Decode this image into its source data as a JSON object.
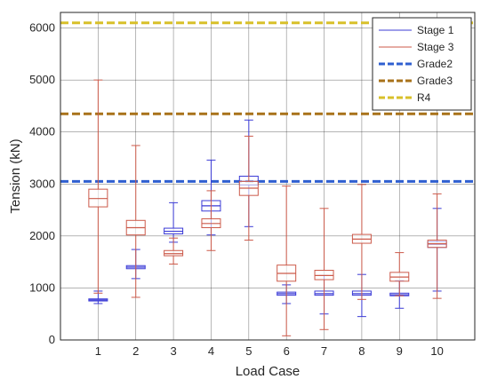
{
  "chart_data": {
    "type": "boxplot",
    "xlabel": "Load Case",
    "ylabel": "Tension (kN)",
    "categories": [
      "1",
      "2",
      "3",
      "4",
      "5",
      "6",
      "7",
      "8",
      "9",
      "10"
    ],
    "ylim": [
      0,
      6300
    ],
    "yticks": [
      0,
      1000,
      2000,
      3000,
      4000,
      5000,
      6000
    ],
    "grid": true,
    "legend_position": "top-right",
    "series": [
      {
        "name": "Stage 1",
        "color": "#3b3bd6",
        "boxes": [
          {
            "category": "1",
            "whisker_low": 700,
            "q1": 750,
            "median": 770,
            "q3": 790,
            "whisker_high": 940
          },
          {
            "category": "2",
            "whisker_low": 1180,
            "q1": 1370,
            "median": 1400,
            "q3": 1430,
            "whisker_high": 1740
          },
          {
            "category": "3",
            "whisker_low": 1880,
            "q1": 2040,
            "median": 2090,
            "q3": 2150,
            "whisker_high": 2640
          },
          {
            "category": "4",
            "whisker_low": 2020,
            "q1": 2480,
            "median": 2580,
            "q3": 2680,
            "whisker_high": 3460
          },
          {
            "category": "5",
            "whisker_low": 2180,
            "q1": 2980,
            "median": 3050,
            "q3": 3150,
            "whisker_high": 4230
          },
          {
            "category": "6",
            "whisker_low": 700,
            "q1": 860,
            "median": 890,
            "q3": 920,
            "whisker_high": 1060
          },
          {
            "category": "7",
            "whisker_low": 500,
            "q1": 860,
            "median": 890,
            "q3": 940,
            "whisker_high": 1240
          },
          {
            "category": "8",
            "whisker_low": 450,
            "q1": 860,
            "median": 890,
            "q3": 940,
            "whisker_high": 1260
          },
          {
            "category": "9",
            "whisker_low": 610,
            "q1": 850,
            "median": 870,
            "q3": 900,
            "whisker_high": 1140
          },
          {
            "category": "10",
            "whisker_low": 940,
            "q1": 1780,
            "median": 1840,
            "q3": 1890,
            "whisker_high": 2530
          }
        ]
      },
      {
        "name": "Stage 3",
        "color": "#cc5a4a",
        "boxes": [
          {
            "category": "1",
            "whisker_low": 900,
            "q1": 2560,
            "median": 2720,
            "q3": 2900,
            "whisker_high": 5000
          },
          {
            "category": "2",
            "whisker_low": 820,
            "q1": 2020,
            "median": 2160,
            "q3": 2300,
            "whisker_high": 3740
          },
          {
            "category": "3",
            "whisker_low": 1460,
            "q1": 1620,
            "median": 1660,
            "q3": 1720,
            "whisker_high": 1960
          },
          {
            "category": "4",
            "whisker_low": 1720,
            "q1": 2160,
            "median": 2240,
            "q3": 2330,
            "whisker_high": 2870
          },
          {
            "category": "5",
            "whisker_low": 1920,
            "q1": 2780,
            "median": 2920,
            "q3": 3050,
            "whisker_high": 3920
          },
          {
            "category": "6",
            "whisker_low": 80,
            "q1": 1130,
            "median": 1280,
            "q3": 1440,
            "whisker_high": 2960
          },
          {
            "category": "7",
            "whisker_low": 200,
            "q1": 1160,
            "median": 1240,
            "q3": 1340,
            "whisker_high": 2530
          },
          {
            "category": "8",
            "whisker_low": 780,
            "q1": 1860,
            "median": 1940,
            "q3": 2030,
            "whisker_high": 2990
          },
          {
            "category": "9",
            "whisker_low": 850,
            "q1": 1130,
            "median": 1210,
            "q3": 1300,
            "whisker_high": 1680
          },
          {
            "category": "10",
            "whisker_low": 800,
            "q1": 1780,
            "median": 1850,
            "q3": 1920,
            "whisker_high": 2810
          }
        ]
      }
    ],
    "reference_lines": [
      {
        "name": "Grade2",
        "value": 3050,
        "color": "#2f5fd0",
        "style": "dashed"
      },
      {
        "name": "Grade3",
        "value": 4350,
        "color": "#a8721a",
        "style": "dashed"
      },
      {
        "name": "R4",
        "value": 6100,
        "color": "#d8c02a",
        "style": "dashed"
      }
    ],
    "legend": [
      "Stage 1",
      "Stage 3",
      "Grade2",
      "Grade3",
      "R4"
    ]
  }
}
